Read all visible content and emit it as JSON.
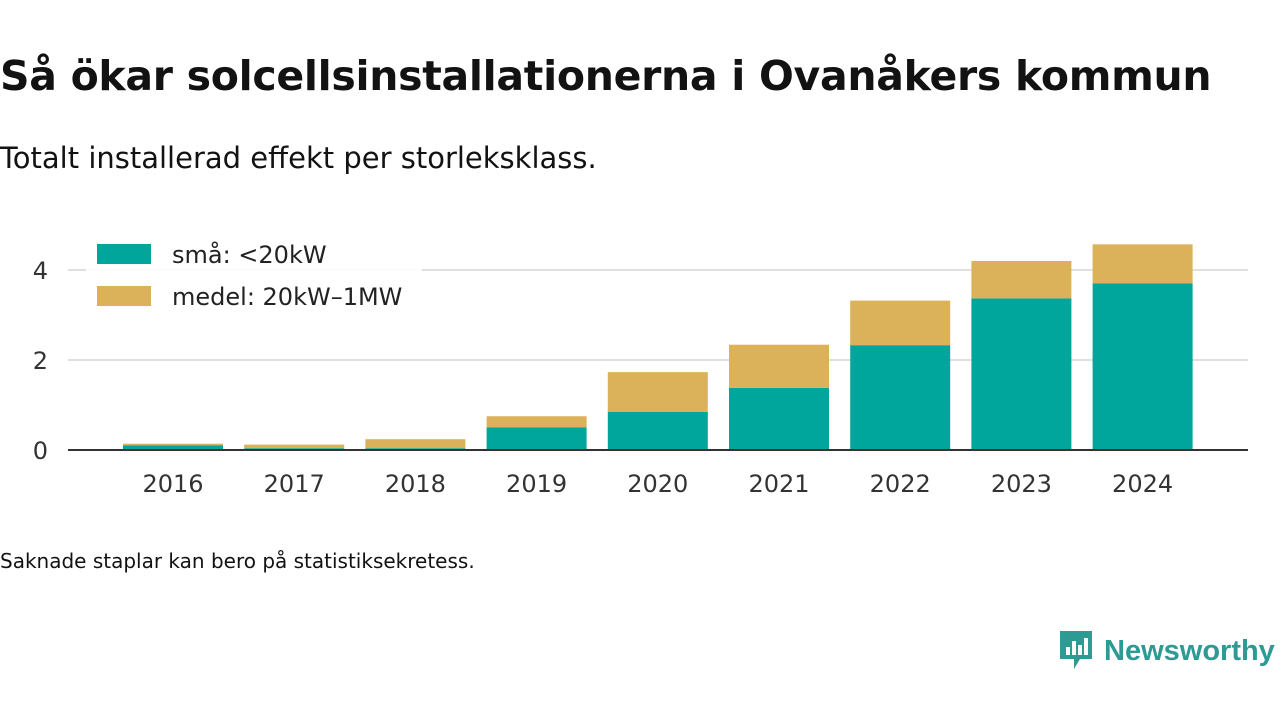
{
  "header": {
    "title": "Så ökar solcellsinstallationerna i Ovanåkers kommun",
    "subtitle": "Totalt installerad effekt per storleksklass."
  },
  "footer": {
    "note": "Saknade staplar kan bero på statistiksekretess.",
    "brand": "Newsworthy"
  },
  "colors": {
    "small": "#00a59b",
    "medium": "#dbb15a",
    "grid": "#e0e0e0",
    "axis": "#333333",
    "brand": "#2d9a94"
  },
  "chart_data": {
    "type": "bar",
    "stacked": true,
    "title": "Så ökar solcellsinstallationerna i Ovanåkers kommun",
    "subtitle": "Totalt installerad effekt per storleksklass.",
    "xlabel": "",
    "ylabel": "",
    "categories": [
      "2016",
      "2017",
      "2018",
      "2019",
      "2020",
      "2021",
      "2022",
      "2023",
      "2024"
    ],
    "series": [
      {
        "name": "små: <20kW",
        "color": "#00a59b",
        "values": [
          0.1,
          0.04,
          0.04,
          0.5,
          0.85,
          1.38,
          2.33,
          3.37,
          3.7
        ]
      },
      {
        "name": "medel: 20kW–1MW",
        "color": "#dbb15a",
        "values": [
          0.04,
          0.08,
          0.2,
          0.25,
          0.88,
          0.96,
          0.99,
          0.83,
          0.87
        ]
      }
    ],
    "yticks": [
      0,
      2,
      4
    ],
    "ylim": [
      0,
      4.6
    ],
    "grid": true,
    "legend_position": "top-left"
  }
}
